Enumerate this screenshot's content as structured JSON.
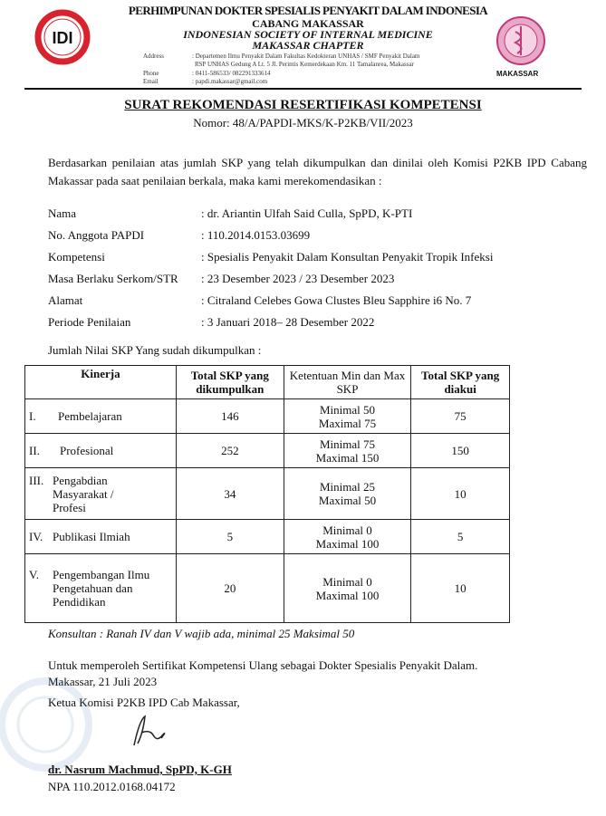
{
  "letterhead": {
    "org_line1": "PERHIMPUNAN DOKTER SPESIALIS PENYAKIT DALAM INDONESIA",
    "org_line2": "CABANG MAKASSAR",
    "org_line3": "INDONESIAN SOCIETY OF INTERNAL MEDICINE",
    "org_line4": "MAKASSAR CHAPTER",
    "address_label": "Address",
    "address_line1": ": Departemen Ilmu Penyakit Dalam Fakultas  Kedokteran UNHAS / SMF  Penyakit Dalam",
    "address_line2": "RSP  UNHAS Gedung A Lt. 5 Jl. Perintis Kemerdekaan Km. 11 Tamalanrea, Makassar",
    "phone_label": "Phone",
    "phone": ": 0411-586533/  082291333614",
    "email_label": "Email",
    "email": ": papdi.makassar@gmail.com",
    "left_logo_text": "IDI",
    "right_logo_caption": "MAKASSAR",
    "accent_red": "#d8232f",
    "accent_pink": "#c03a7a"
  },
  "title": "SURAT REKOMENDASI RESERTIFIKASI KOMPETENSI",
  "number": "Nomor:  48/A/PAPDI-MKS/K-P2KB/VII/2023",
  "intro": "Berdasarkan penilaian atas jumlah SKP yang telah dikumpulkan dan dinilai oleh Komisi P2KB IPD Cabang Makassar pada saat penilaian berkala, maka kami merekomendasikan :",
  "fields": [
    {
      "label": "Nama",
      "value": ": dr. Ariantin Ulfah Said Culla, SpPD, K-PTI"
    },
    {
      "label": "No. Anggota PAPDI",
      "value": ": 110.2014.0153.03699"
    },
    {
      "label": "Kompetensi",
      "value": ": Spesialis Penyakit Dalam Konsultan Penyakit Tropik Infeksi"
    },
    {
      "label": "Masa Berlaku Serkom/STR",
      "value": ": 23 Desember 2023 / 23 Desember 2023"
    },
    {
      "label": "Alamat",
      "value": ": Citraland Celebes Gowa Clustes Bleu Sapphire i6 No. 7"
    },
    {
      "label": "Periode Penilaian",
      "value": ": 3 Januari 2018– 28 Desember 2022"
    }
  ],
  "table_caption": "Jumlah Nilai SKP Yang sudah dikumpulkan :",
  "table": {
    "headers": [
      "Kinerja",
      "Total SKP yang dikumpulkan",
      "Ketentuan Min dan Max SKP",
      "Total SKP yang diakui"
    ],
    "rows": [
      {
        "num": "I.",
        "kinerja": "Pembelajaran",
        "total": "146",
        "min": "Minimal 50",
        "max": "Maximal 75",
        "diakui": "75"
      },
      {
        "num": "II.",
        "kinerja": "Profesional",
        "total": "252",
        "min": "Minimal 75",
        "max": "Maximal 150",
        "diakui": "150"
      },
      {
        "num": "III.",
        "kinerja": "Pengabdian Masyarakat / Profesi",
        "total": "34",
        "min": "Minimal 25",
        "max": "Maximal 50",
        "diakui": "10"
      },
      {
        "num": "IV.",
        "kinerja": "Publikasi Ilmiah",
        "total": "5",
        "min": "Minimal 0",
        "max": "Maximal 100",
        "diakui": "5"
      },
      {
        "num": "V.",
        "kinerja": "Pengembangan Ilmu Pengetahuan dan Pendidikan",
        "total": "20",
        "min": "Minimal 0",
        "max": "Maximal 100",
        "diakui": "10"
      }
    ]
  },
  "note": "Konsultan : Ranah IV dan V wajib ada, minimal 25 Maksimal 50",
  "closing": "Untuk memperoleh Sertifikat Kompetensi Ulang sebagai Dokter Spesialis Penyakit Dalam.",
  "place_date": "Makassar, 21 Juli 2023",
  "signer_title": "Ketua Komisi P2KB IPD Cab Makassar,",
  "signer_name": "dr. Nasrum Machmud, SpPD, K-GH",
  "signer_npa": "NPA 110.2012.0168.04172"
}
